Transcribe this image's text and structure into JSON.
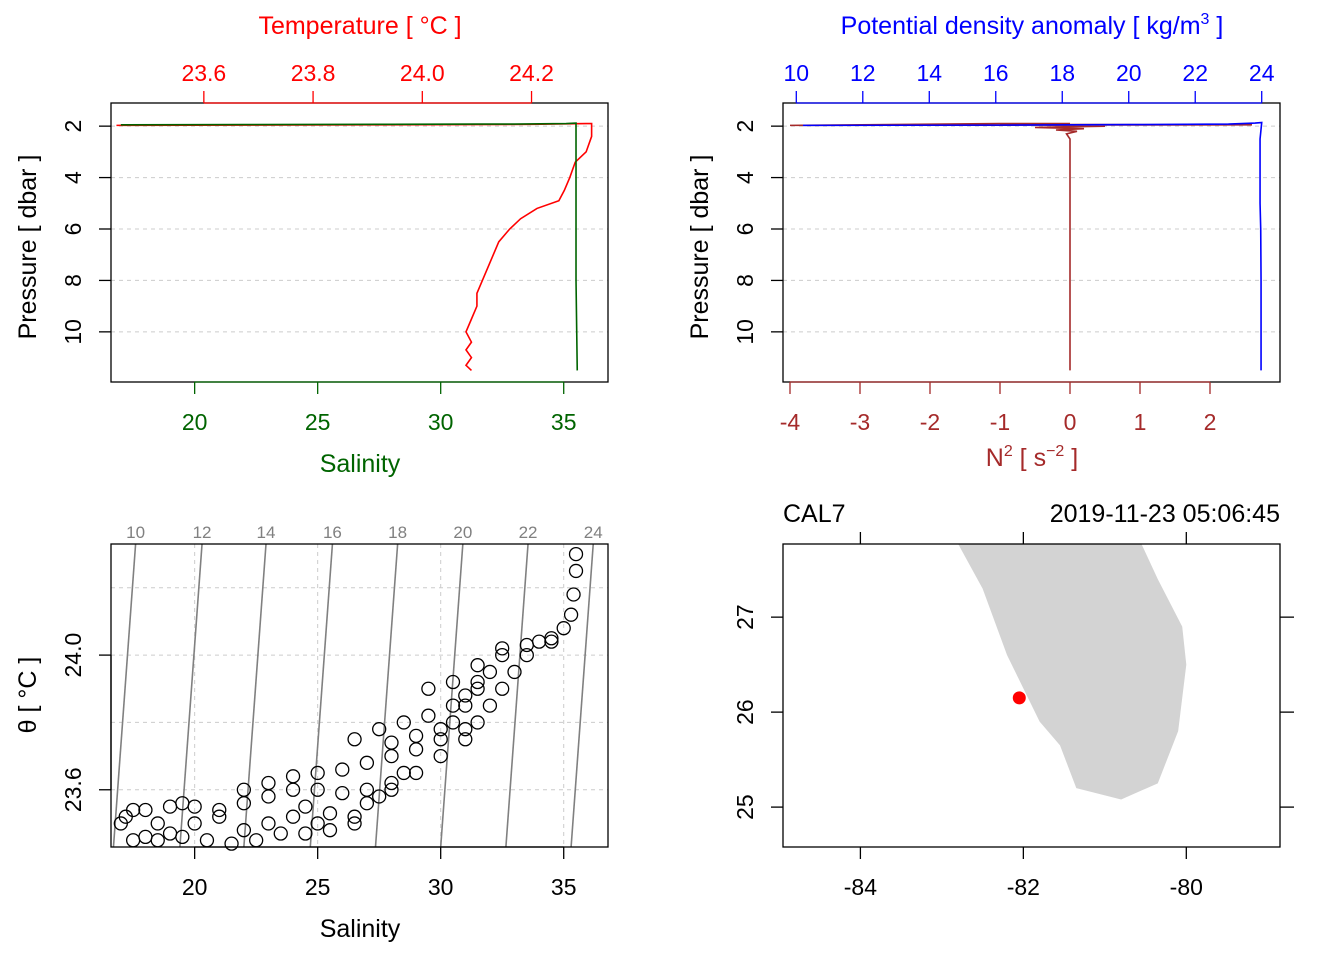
{
  "colors": {
    "temperature": "#ff0000",
    "salinity": "#006400",
    "density": "#0000ff",
    "n2": "#a52a2a",
    "land": "#d3d3d3",
    "station": "#ff0000",
    "grid": "#cccccc",
    "isopycnal": "#808080"
  },
  "chart_data": [
    {
      "id": "profile_ts",
      "type": "line",
      "top_axis_label": "Temperature [ °C ]",
      "top_ticks": [
        "23.6",
        "23.8",
        "24.0",
        "24.2"
      ],
      "top_range": [
        23.43,
        24.34
      ],
      "bottom_axis_label": "Salinity",
      "bottom_ticks": [
        "20",
        "25",
        "30",
        "35"
      ],
      "bottom_range": [
        16.6,
        36.8
      ],
      "ylabel": "Pressure [ dbar ]",
      "y_ticks": [
        "2",
        "4",
        "6",
        "8",
        "10"
      ],
      "ylim": [
        1.1,
        11.95
      ],
      "series": [
        {
          "name": "temperature",
          "points": [
            [
              23.44,
              1.97
            ],
            [
              23.9,
              1.95
            ],
            [
              24.2,
              1.93
            ],
            [
              24.3,
              1.9
            ],
            [
              24.31,
              1.9
            ],
            [
              24.31,
              2.4
            ],
            [
              24.3,
              3.0
            ],
            [
              24.28,
              3.4
            ],
            [
              24.27,
              4.0
            ],
            [
              24.26,
              4.5
            ],
            [
              24.25,
              4.9
            ],
            [
              24.21,
              5.2
            ],
            [
              24.18,
              5.6
            ],
            [
              24.16,
              6.0
            ],
            [
              24.14,
              6.5
            ],
            [
              24.13,
              7.0
            ],
            [
              24.12,
              7.5
            ],
            [
              24.11,
              8.0
            ],
            [
              24.1,
              8.5
            ],
            [
              24.1,
              9.0
            ],
            [
              24.09,
              9.5
            ],
            [
              24.08,
              10.0
            ],
            [
              24.09,
              10.4
            ],
            [
              24.08,
              10.7
            ],
            [
              24.09,
              11.0
            ],
            [
              24.08,
              11.3
            ],
            [
              24.09,
              11.5
            ]
          ]
        },
        {
          "name": "salinity",
          "points": [
            [
              17.0,
              1.95
            ],
            [
              22.0,
              1.94
            ],
            [
              28.0,
              1.93
            ],
            [
              31.5,
              1.92
            ],
            [
              33.0,
              1.92
            ],
            [
              35.1,
              1.9
            ],
            [
              35.5,
              1.88
            ],
            [
              35.5,
              2.5
            ],
            [
              35.5,
              5.0
            ],
            [
              35.5,
              8.0
            ],
            [
              35.55,
              11.5
            ]
          ]
        }
      ]
    },
    {
      "id": "profile_density",
      "type": "line",
      "top_axis_label": "Potential density anomaly [ kg/m",
      "top_axis_sup": "3",
      "top_axis_suffix": " ]",
      "top_ticks": [
        "10",
        "12",
        "14",
        "16",
        "18",
        "20",
        "22",
        "24"
      ],
      "top_range": [
        9.6,
        24.55
      ],
      "bottom_axis_label": "N",
      "bottom_axis_sup1": "2",
      "bottom_axis_mid": " [ s",
      "bottom_axis_sup2": "−2",
      "bottom_axis_suffix": " ]",
      "bottom_ticks": [
        "-4",
        "-3",
        "-2",
        "-1",
        "0",
        "1",
        "2"
      ],
      "bottom_range": [
        -4.1,
        3.0
      ],
      "ylabel": "Pressure [ dbar ]",
      "y_ticks": [
        "2",
        "4",
        "6",
        "8",
        "10"
      ],
      "ylim": [
        1.1,
        11.95
      ],
      "series": [
        {
          "name": "density",
          "points": [
            [
              10.2,
              1.97
            ],
            [
              16.0,
              1.96
            ],
            [
              20.0,
              1.94
            ],
            [
              23.0,
              1.92
            ],
            [
              23.8,
              1.88
            ],
            [
              24.0,
              1.86
            ],
            [
              23.95,
              2.5
            ],
            [
              23.95,
              5.0
            ],
            [
              23.97,
              6.0
            ],
            [
              23.98,
              8.0
            ],
            [
              23.98,
              11.5
            ]
          ]
        },
        {
          "name": "n2",
          "points": [
            [
              0.0,
              1.9
            ],
            [
              -1.0,
              1.9
            ],
            [
              -4.0,
              1.97
            ],
            [
              2.6,
              1.95
            ],
            [
              -1.0,
              1.93
            ],
            [
              0.5,
              2.0
            ],
            [
              -0.5,
              2.05
            ],
            [
              0.2,
              2.1
            ],
            [
              -0.2,
              2.15
            ],
            [
              0.1,
              2.2
            ],
            [
              -0.05,
              2.3
            ],
            [
              0.0,
              2.5
            ],
            [
              0.0,
              5.0
            ],
            [
              0.0,
              8.0
            ],
            [
              0.0,
              11.5
            ]
          ]
        }
      ]
    },
    {
      "id": "ts_diagram",
      "type": "scatter",
      "xlabel": "Salinity",
      "x_ticks": [
        "20",
        "25",
        "30",
        "35"
      ],
      "xlim": [
        16.6,
        36.8
      ],
      "ylabel": "θ [ °C ]",
      "y_ticks": [
        "23.6",
        "24.0"
      ],
      "ylim": [
        23.43,
        24.33
      ],
      "isopycnal_labels": [
        "10",
        "12",
        "14",
        "16",
        "18",
        "20",
        "22",
        "24"
      ],
      "isopycnal_salinity_bottom": [
        16.7,
        19.4,
        22.0,
        24.7,
        27.35,
        30.0,
        32.65,
        35.3
      ],
      "isopycnal_salinity_top": [
        17.6,
        20.3,
        22.9,
        25.6,
        28.25,
        30.9,
        33.55,
        36.2
      ],
      "points": [
        [
          17.0,
          23.5
        ],
        [
          17.2,
          23.52
        ],
        [
          17.5,
          23.54
        ],
        [
          18.0,
          23.54
        ],
        [
          18.5,
          23.5
        ],
        [
          19.0,
          23.55
        ],
        [
          19.5,
          23.56
        ],
        [
          20.0,
          23.55
        ],
        [
          21.0,
          23.54
        ],
        [
          22.0,
          23.56
        ],
        [
          23.0,
          23.58
        ],
        [
          24.0,
          23.6
        ],
        [
          25.0,
          23.6
        ],
        [
          26.0,
          23.59
        ],
        [
          27.0,
          23.6
        ],
        [
          28.0,
          23.62
        ],
        [
          29.0,
          23.65
        ],
        [
          30.0,
          23.7
        ],
        [
          31.0,
          23.75
        ],
        [
          31.5,
          23.8
        ],
        [
          32.0,
          23.85
        ],
        [
          32.5,
          23.9
        ],
        [
          33.0,
          23.95
        ],
        [
          33.5,
          24.0
        ],
        [
          34.0,
          24.04
        ],
        [
          34.5,
          24.05
        ],
        [
          35.0,
          24.08
        ],
        [
          35.3,
          24.12
        ],
        [
          35.4,
          24.18
        ],
        [
          35.5,
          24.25
        ],
        [
          35.5,
          24.3
        ],
        [
          17.5,
          23.45
        ],
        [
          18.5,
          23.45
        ],
        [
          19.5,
          23.46
        ],
        [
          20.5,
          23.45
        ],
        [
          21.5,
          23.44
        ],
        [
          22.5,
          23.45
        ],
        [
          23.5,
          23.47
        ],
        [
          24.5,
          23.47
        ],
        [
          25.5,
          23.48
        ],
        [
          26.5,
          23.52
        ],
        [
          27.0,
          23.56
        ],
        [
          27.5,
          23.58
        ],
        [
          28.0,
          23.6
        ],
        [
          28.5,
          23.65
        ],
        [
          22.0,
          23.6
        ],
        [
          23.0,
          23.62
        ],
        [
          24.0,
          23.64
        ],
        [
          25.0,
          23.65
        ],
        [
          26.0,
          23.66
        ],
        [
          27.0,
          23.68
        ],
        [
          28.0,
          23.7
        ],
        [
          29.0,
          23.72
        ],
        [
          30.0,
          23.75
        ],
        [
          30.5,
          23.8
        ],
        [
          31.0,
          23.85
        ],
        [
          31.5,
          23.9
        ],
        [
          32.0,
          23.95
        ],
        [
          32.5,
          24.0
        ],
        [
          26.5,
          23.75
        ],
        [
          27.5,
          23.78
        ],
        [
          28.5,
          23.8
        ],
        [
          29.5,
          23.82
        ],
        [
          30.5,
          23.85
        ],
        [
          31.0,
          23.88
        ],
        [
          31.5,
          23.92
        ],
        [
          28.0,
          23.74
        ],
        [
          29.0,
          23.76
        ],
        [
          30.0,
          23.78
        ],
        [
          31.0,
          23.78
        ],
        [
          29.5,
          23.9
        ],
        [
          30.5,
          23.92
        ],
        [
          31.5,
          23.97
        ],
        [
          32.5,
          24.02
        ],
        [
          33.5,
          24.03
        ],
        [
          34.5,
          24.04
        ],
        [
          24.5,
          23.55
        ],
        [
          25.5,
          23.53
        ],
        [
          26.5,
          23.5
        ],
        [
          25.0,
          23.5
        ],
        [
          24.0,
          23.52
        ],
        [
          23.0,
          23.5
        ],
        [
          22.0,
          23.48
        ],
        [
          21.0,
          23.52
        ],
        [
          20.0,
          23.5
        ],
        [
          19.0,
          23.47
        ],
        [
          18.0,
          23.46
        ]
      ]
    },
    {
      "id": "station_map",
      "type": "scatter",
      "station_name": "CAL7",
      "datetime": "2019-11-23 05:06:45",
      "x_ticks": [
        "-84",
        "-82",
        "-80"
      ],
      "xlim": [
        -84.95,
        -78.85
      ],
      "y_ticks": [
        "25",
        "26",
        "27"
      ],
      "ylim": [
        24.58,
        27.77
      ],
      "station": {
        "lon": -82.05,
        "lat": 26.15
      },
      "land_polygon": [
        [
          -82.8,
          27.77
        ],
        [
          -82.5,
          27.3
        ],
        [
          -82.2,
          26.6
        ],
        [
          -81.8,
          25.9
        ],
        [
          -81.55,
          25.65
        ],
        [
          -81.35,
          25.2
        ],
        [
          -80.8,
          25.08
        ],
        [
          -80.35,
          25.25
        ],
        [
          -80.1,
          25.8
        ],
        [
          -80.0,
          26.5
        ],
        [
          -80.05,
          26.9
        ],
        [
          -80.35,
          27.4
        ],
        [
          -80.55,
          27.77
        ]
      ]
    }
  ]
}
